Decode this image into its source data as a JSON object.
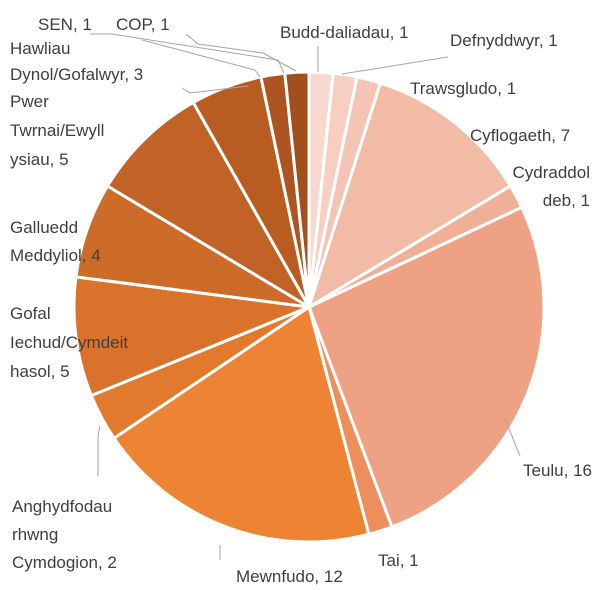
{
  "chart_data": {
    "type": "pie",
    "title": "",
    "slices": [
      {
        "label": "Budd-daliadau",
        "value": 1,
        "color": "#f8d9d0"
      },
      {
        "label": "Defnyddwyr",
        "value": 1,
        "color": "#f6cfc2"
      },
      {
        "label": "Trawsgludo",
        "value": 1,
        "color": "#f4c5b4"
      },
      {
        "label": "Cyflogaeth",
        "value": 7,
        "color": "#f2bba6"
      },
      {
        "label": "Cydraddoldeb",
        "value": 1,
        "color": "#f0b097"
      },
      {
        "label": "Teulu",
        "value": 16,
        "color": "#eea283"
      },
      {
        "label": "Tai",
        "value": 1,
        "color": "#ec8f5c"
      },
      {
        "label": "Mewnfudo",
        "value": 12,
        "color": "#ec8434"
      },
      {
        "label": "Anghydfodau rhwng Cymdogion",
        "value": 2,
        "color": "#e27a2e"
      },
      {
        "label": "Gofal Iechud/Cymdeithasol",
        "value": 5,
        "color": "#d9732b"
      },
      {
        "label": "Galluedd Meddyliol",
        "value": 4,
        "color": "#cd6c29"
      },
      {
        "label": "Pwer Twrnai/Ewyllysiau",
        "value": 5,
        "color": "#c16326"
      },
      {
        "label": "Hawliau Dynol/Gofalwyr",
        "value": 3,
        "color": "#b85c22"
      },
      {
        "label": "SEN",
        "value": 1,
        "color": "#ad5420"
      },
      {
        "label": "COP",
        "value": 1,
        "color": "#a24f1d"
      }
    ]
  },
  "labels": [
    {
      "lines": [
        "Budd-daliadau, 1"
      ]
    },
    {
      "lines": [
        "Defnyddwyr, 1"
      ]
    },
    {
      "lines": [
        "Trawsgludo, 1"
      ]
    },
    {
      "lines": [
        "Cyflogaeth, 7"
      ]
    },
    {
      "lines": [
        "Cydraddol",
        "deb, 1"
      ]
    },
    {
      "lines": [
        "Teulu, 16"
      ]
    },
    {
      "lines": [
        "Tai, 1"
      ]
    },
    {
      "lines": [
        "Mewnfudo, 12"
      ]
    },
    {
      "lines": [
        "Anghydfodau",
        "rhwng",
        "Cymdogion, 2"
      ]
    },
    {
      "lines": [
        "Gofal",
        "Iechud/Cymdeit",
        "hasol, 5"
      ]
    },
    {
      "lines": [
        "Galluedd",
        "Meddyliol, 4"
      ]
    },
    {
      "lines": [
        "Pwer",
        "Twrnai/Ewyll",
        "ysiau, 5"
      ]
    },
    {
      "lines": [
        "Hawliau",
        "Dynol/Gofalwyr, 3"
      ]
    },
    {
      "lines": [
        "SEN, 1"
      ]
    },
    {
      "lines": [
        "COP, 1"
      ]
    }
  ]
}
